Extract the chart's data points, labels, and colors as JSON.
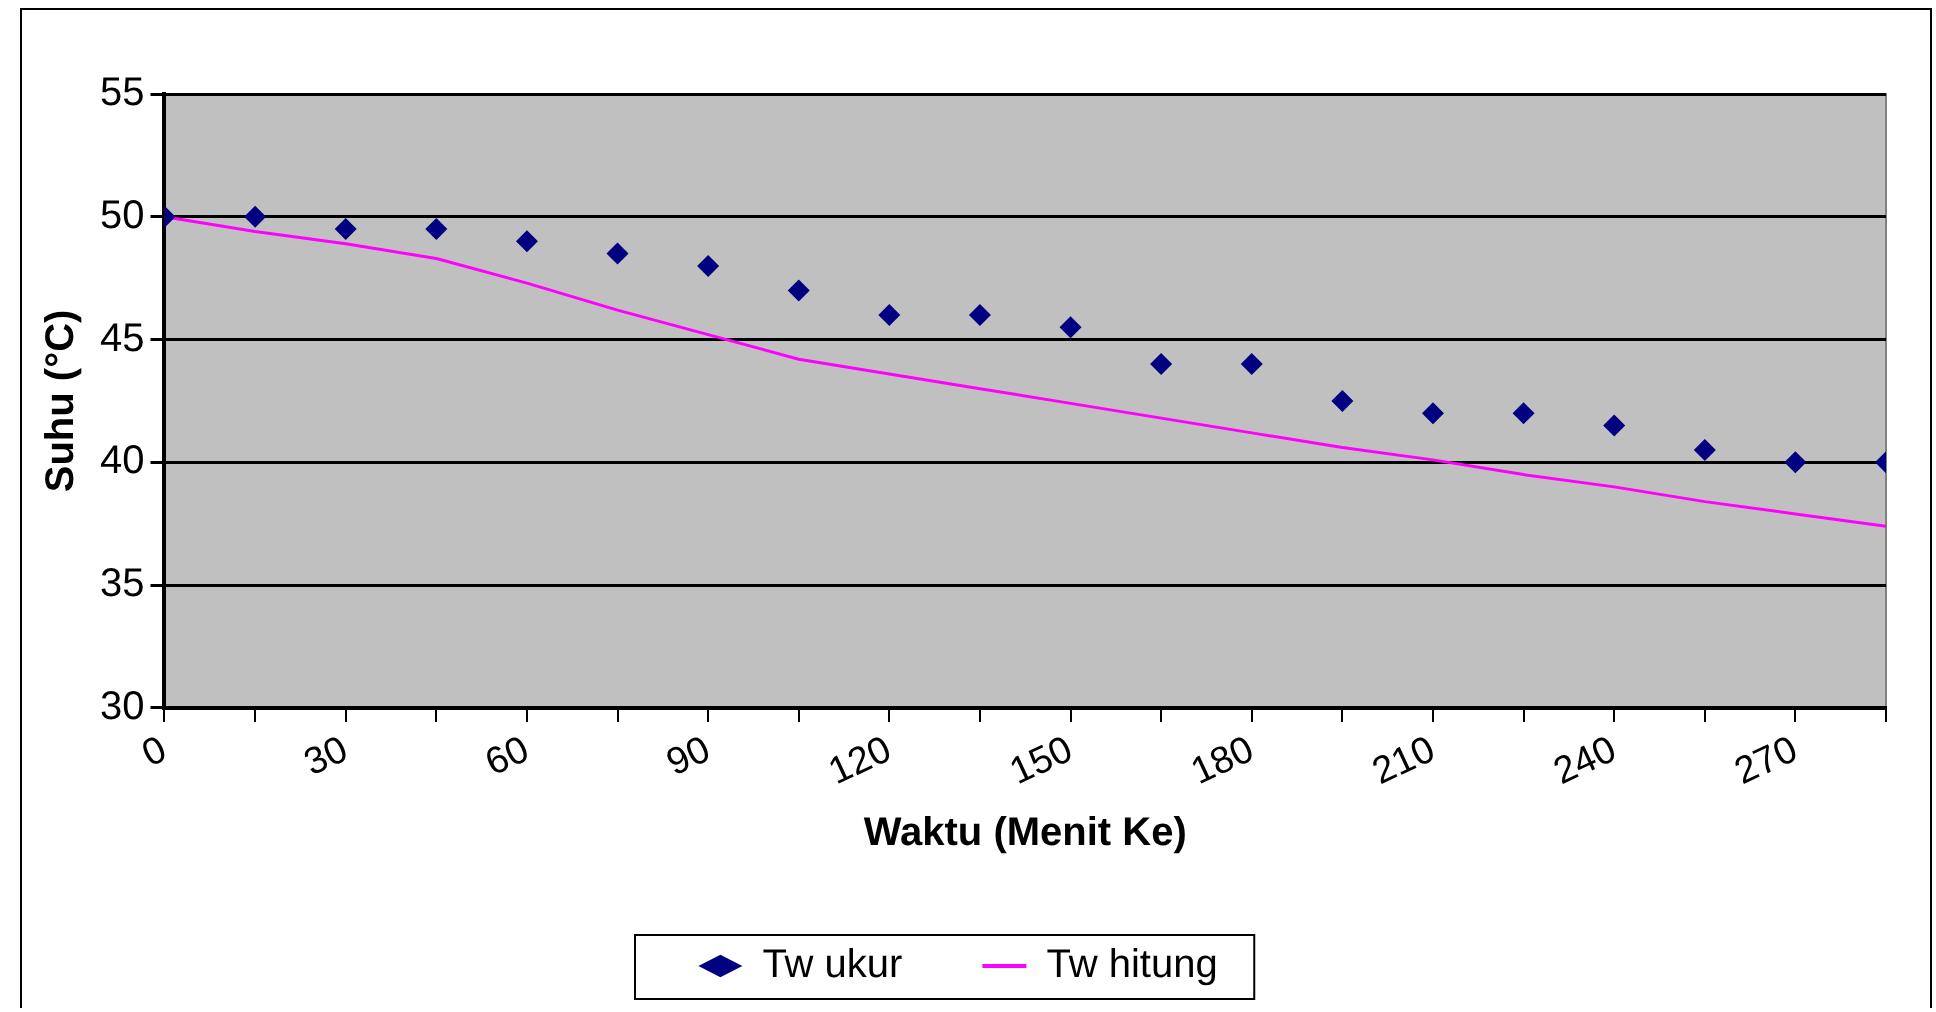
{
  "chart_data": {
    "type": "scatter",
    "xlabel": "Waktu (Menit Ke)",
    "ylabel": "Suhu (°C)",
    "x": [
      0,
      15,
      30,
      45,
      60,
      75,
      90,
      105,
      120,
      135,
      150,
      165,
      180,
      195,
      210,
      225,
      240,
      255,
      270,
      285
    ],
    "series": [
      {
        "name": "Tw ukur",
        "marker": "diamond",
        "color": "#000080",
        "values": [
          50,
          50,
          49.5,
          49.5,
          49,
          48.5,
          48,
          47,
          46,
          46,
          45.5,
          44,
          44,
          42.5,
          42,
          42,
          41.5,
          40.5,
          40,
          40
        ]
      },
      {
        "name": "Tw hitung",
        "type": "line",
        "marker": "none",
        "color": "#ff00ff",
        "values": [
          50,
          49.4,
          48.9,
          48.3,
          47.3,
          46.2,
          45.2,
          44.2,
          43.6,
          43.0,
          42.4,
          41.8,
          41.2,
          40.6,
          40.1,
          39.5,
          39.0,
          38.4,
          37.9,
          37.4
        ]
      }
    ],
    "xlim": [
      0,
      285
    ],
    "xticks": [
      0,
      {
        "value": 15,
        "label": null
      },
      30,
      {
        "value": 45,
        "label": null
      },
      60,
      {
        "value": 75,
        "label": null
      },
      90,
      {
        "value": 105,
        "label": null
      },
      120,
      {
        "value": 135,
        "label": null
      },
      150,
      {
        "value": 165,
        "label": null
      },
      180,
      {
        "value": 195,
        "label": null
      },
      210,
      {
        "value": 225,
        "label": null
      },
      240,
      {
        "value": 255,
        "label": null
      },
      270,
      {
        "value": 285,
        "label": null
      }
    ],
    "ylim": [
      30,
      55
    ],
    "yticks": [
      30,
      35,
      40,
      45,
      50,
      55
    ],
    "grid": "y",
    "legend": "bottom"
  }
}
